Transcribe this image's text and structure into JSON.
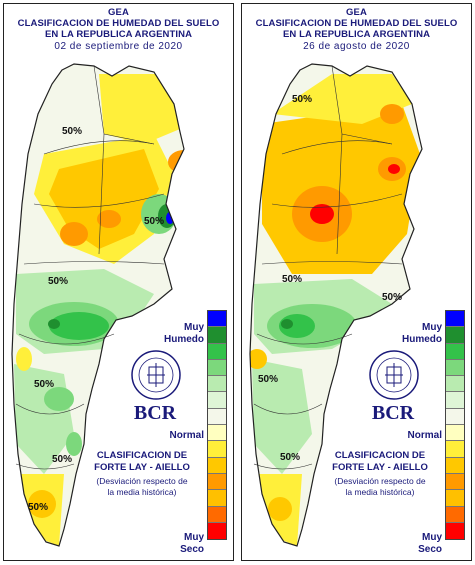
{
  "header": {
    "line1": "GEA",
    "line2": "CLASIFICACION DE HUMEDAD DEL SUELO",
    "line3": "EN LA REPUBLICA ARGENTINA"
  },
  "panels": [
    {
      "date": "02 de septiembre de 2020"
    },
    {
      "date": "26 de agosto de 2020"
    }
  ],
  "legend": {
    "top_label_1": "Muy",
    "top_label_2": "Humedo",
    "middle_label": "Normal",
    "bottom_label_1": "Muy",
    "bottom_label_2": "Seco",
    "scale_colors": [
      "#0000ff",
      "#1f8f2f",
      "#33c24a",
      "#7cd87c",
      "#b9ebb0",
      "#def5d6",
      "#f4f7ea",
      "#ffffc0",
      "#ffef3a",
      "#ffc800",
      "#ff9a00",
      "#ff0000"
    ]
  },
  "logo": {
    "text": "BCR"
  },
  "classification": {
    "title_1": "CLASIFICACION DE",
    "title_2": "FORTE LAY - AIELLO",
    "subtitle_1": "(Desviación respecto de",
    "subtitle_2": "la media histórica)"
  },
  "map_labels": {
    "pct": "50%"
  },
  "colors": {
    "title_text": "#1a1a7a",
    "very_dry": "#ff0000",
    "dry_orange": "#ff9a00",
    "dry_yellow": "#ffc800",
    "light_yellow": "#ffef3a",
    "normal": "#f4f7ea",
    "wet_light": "#b9ebb0",
    "wet_green": "#33c24a",
    "wet_dark": "#1f8f2f",
    "very_wet": "#0000ff"
  }
}
